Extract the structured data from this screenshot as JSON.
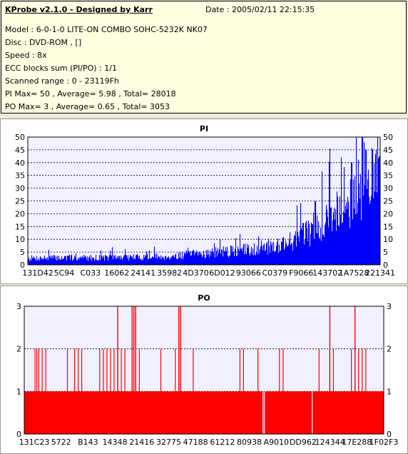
{
  "info": {
    "title": "KProbe v2.1.0 - Designed by Karr",
    "date": "Date : 2005/02/11 22:15:35",
    "lines": [
      "Model : 6-0-1-0 LITE-ON COMBO SOHC-5232K NK07",
      "Disc : DVD-ROM ,  []",
      "Speed : 8x",
      "ECC blocks sum (PI/PO) : 1/1",
      "Scanned range : 0 - 23119Fh",
      "PI Max= 50 , Average= 5.98 , Total= 28018",
      "PO Max= 3 , Average= 0.65 , Total= 3053"
    ]
  },
  "colors": {
    "pi": "#0000ff",
    "po": "#ff0000",
    "plot_bg": "#f0f0ff",
    "grid": "#000000"
  },
  "chart_data": [
    {
      "type": "bar",
      "title": "PI",
      "ylim": [
        0,
        50
      ],
      "yticks": [
        0,
        5,
        10,
        15,
        20,
        25,
        30,
        35,
        40,
        45,
        50
      ],
      "xticks": [
        "131D42",
        "5C94",
        "C033",
        "16062",
        "24141",
        "35982",
        "4D370",
        "6D012",
        "93066",
        "C0379",
        "F9066",
        "143702",
        "1A7528",
        "221341"
      ],
      "x_range_hex": [
        "0",
        "23119"
      ],
      "profile": [
        [
          0.0,
          2.6
        ],
        [
          0.1,
          2.8
        ],
        [
          0.2,
          2.8
        ],
        [
          0.3,
          3.0
        ],
        [
          0.4,
          3.2
        ],
        [
          0.5,
          4.5
        ],
        [
          0.6,
          5.5
        ],
        [
          0.65,
          6.5
        ],
        [
          0.7,
          7.5
        ],
        [
          0.75,
          9.5
        ],
        [
          0.8,
          13
        ],
        [
          0.85,
          18
        ],
        [
          0.9,
          24
        ],
        [
          0.95,
          30
        ],
        [
          1.0,
          33
        ]
      ],
      "peaks": [
        [
          0.95,
          50
        ],
        [
          0.955,
          48
        ],
        [
          0.96,
          45
        ],
        [
          0.98,
          45
        ],
        [
          0.99,
          45
        ],
        [
          0.92,
          40
        ],
        [
          0.89,
          42
        ]
      ]
    },
    {
      "type": "bar",
      "title": "PO",
      "ylim": [
        0,
        3
      ],
      "yticks": [
        0,
        1,
        2,
        3
      ],
      "xticks": [
        "131C23",
        "5722",
        "B143",
        "14348",
        "21416",
        "32775",
        "47188",
        "61212",
        "80938",
        "A9010",
        "DD962",
        "124344",
        "17E288",
        "1F02F3"
      ],
      "x_range_hex": [
        "0",
        "23119"
      ],
      "base_value": 1,
      "gaps": [
        0.663,
        0.667,
        0.8
      ],
      "spikes2": [
        0.03,
        0.035,
        0.04,
        0.05,
        0.06,
        0.12,
        0.14,
        0.15,
        0.16,
        0.21,
        0.22,
        0.23,
        0.24,
        0.25,
        0.26,
        0.27,
        0.28,
        0.3,
        0.31,
        0.32,
        0.38,
        0.42,
        0.43,
        0.47,
        0.6,
        0.61,
        0.65,
        0.71,
        0.72,
        0.82,
        0.85,
        0.86,
        0.91,
        0.92,
        0.93,
        0.94,
        0.95
      ],
      "spikes3": [
        0.26,
        0.3,
        0.305,
        0.31,
        0.43,
        0.435,
        0.85,
        0.92
      ]
    }
  ]
}
